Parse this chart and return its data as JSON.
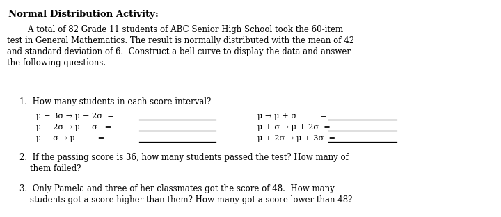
{
  "bg_color": "#ffffff",
  "title": "Normal Distribution Activity:",
  "para_line1": "        A total of 82 Grade 11 students of ABC Senior High School took the 60-item",
  "para_line2": "test in General Mathematics. The result is normally distributed with the mean of 42",
  "para_line3": "and standard deviation of 6.  Construct a bell curve to display the data and answer",
  "para_line4": "the following questions.",
  "q1_header": "1.  How many students in each score interval?",
  "q1_left": [
    "μ − 3σ → μ − 2σ  =",
    "μ − 2σ → μ − σ   =",
    "μ − σ → μ         ="
  ],
  "q1_right": [
    "μ → μ + σ",
    "μ + σ → μ + 2σ  =",
    "μ + 2σ → μ + 3σ  ="
  ],
  "q1_right_eq": [
    "=",
    "",
    ""
  ],
  "q2_line1": "2.  If the passing score is 36, how many students passed the test? How many of",
  "q2_line2": "    them failed?",
  "q3_line1": "3.  Only Pamela and three of her classmates got the score of 48.  How many",
  "q3_line2": "    students got a score higher than them? How many got a score lower than 48?",
  "font_size_title": 9.5,
  "font_size_body": 8.5,
  "font_size_eq": 8.2
}
